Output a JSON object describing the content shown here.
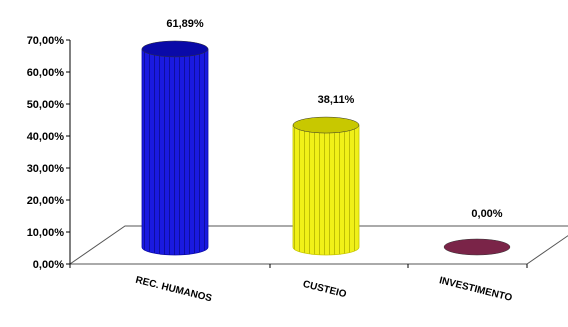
{
  "chart_data": {
    "type": "bar",
    "bar_shape": "cylinder",
    "three_d": true,
    "categories": [
      "REC. HUMANOS",
      "CUSTEIO",
      "INVESTIMENTO"
    ],
    "values": [
      61.89,
      38.11,
      0.0
    ],
    "data_labels": [
      "61,89%",
      "38,11%",
      "0,00%"
    ],
    "colors": [
      "#1616d8",
      "#e6e614",
      "#7a2448"
    ],
    "y_ticks": [
      "0,00%",
      "10,00%",
      "20,00%",
      "30,00%",
      "40,00%",
      "50,00%",
      "60,00%",
      "70,00%"
    ],
    "ylim": [
      0,
      70
    ],
    "title": "",
    "xlabel": "",
    "ylabel": "",
    "grid": false,
    "legend": "none"
  }
}
